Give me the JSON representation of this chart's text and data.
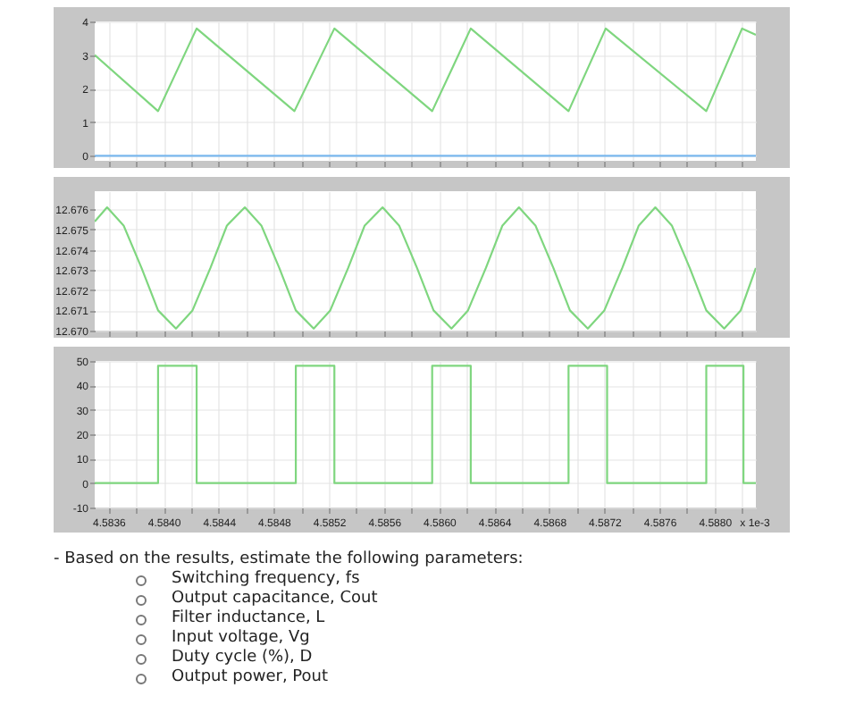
{
  "chart_data": [
    {
      "type": "line",
      "tick_labels": "y",
      "grid": true,
      "xlim": [
        4.5835,
        4.5883
      ],
      "xticks": [
        4.5836,
        4.5838,
        4.584,
        4.5842,
        4.5844,
        4.5846,
        4.5848,
        4.585,
        4.5852,
        4.5854,
        4.5856,
        4.5858,
        4.586,
        4.5862,
        4.5864,
        4.5866,
        4.5868,
        4.587,
        4.5872,
        4.5874,
        4.5876,
        4.5878,
        4.588,
        4.5882
      ],
      "ylim": [
        -0.15,
        4
      ],
      "yticks": [
        0,
        1,
        2,
        3,
        4
      ],
      "series": [
        {
          "color": "#7fd67f",
          "x": [
            4.5835,
            4.58396,
            4.58424,
            4.58495,
            4.58524,
            4.58595,
            4.58623,
            4.58694,
            4.58721,
            4.58794,
            4.5882,
            4.5883
          ],
          "values": [
            3.0,
            1.33,
            3.79,
            1.33,
            3.79,
            1.33,
            3.79,
            1.33,
            3.79,
            1.33,
            3.79,
            3.6
          ]
        },
        {
          "color": "#7ab8ee",
          "x": [
            4.5835,
            4.5883
          ],
          "values": [
            0,
            0
          ]
        }
      ]
    },
    {
      "type": "line",
      "tick_labels": "y",
      "grid": true,
      "xlim": [
        4.5835,
        4.5883
      ],
      "xticks": [
        4.5836,
        4.5838,
        4.584,
        4.5842,
        4.5844,
        4.5846,
        4.5848,
        4.585,
        4.5852,
        4.5854,
        4.5856,
        4.5858,
        4.586,
        4.5862,
        4.5864,
        4.5866,
        4.5868,
        4.587,
        4.5872,
        4.5874,
        4.5876,
        4.5878,
        4.588,
        4.5882
      ],
      "ylim": [
        12.67,
        12.6769
      ],
      "yticks": [
        {
          "value": 12.67,
          "label": "12.670"
        },
        {
          "value": 12.671,
          "label": "12.671"
        },
        {
          "value": 12.672,
          "label": "12.672"
        },
        {
          "value": 12.673,
          "label": "12.673"
        },
        {
          "value": 12.674,
          "label": "12.674"
        },
        {
          "value": 12.675,
          "label": "12.675"
        },
        {
          "value": 12.676,
          "label": "12.676"
        }
      ],
      "series": [
        {
          "color": "#7fd67f",
          "x": [
            4.5835,
            4.58359,
            4.58371,
            4.58384,
            4.58396,
            4.58409,
            4.58421,
            4.58434,
            4.58446,
            4.58459,
            4.58471,
            4.58484,
            4.58496,
            4.58509,
            4.58521,
            4.58534,
            4.58546,
            4.58559,
            4.58571,
            4.58584,
            4.58596,
            4.58609,
            4.58621,
            4.58634,
            4.58646,
            4.58658,
            4.5867,
            4.58683,
            4.58695,
            4.58708,
            4.5872,
            4.58733,
            4.58745,
            4.58757,
            4.58769,
            4.58782,
            4.58794,
            4.58807,
            4.58819,
            4.5883
          ],
          "values": [
            12.6754,
            12.6761,
            12.6752,
            12.6731,
            12.671,
            12.6701,
            12.671,
            12.6731,
            12.6752,
            12.6761,
            12.6752,
            12.6731,
            12.671,
            12.6701,
            12.671,
            12.6731,
            12.6752,
            12.6761,
            12.6752,
            12.6731,
            12.671,
            12.6701,
            12.671,
            12.6731,
            12.6752,
            12.6761,
            12.6752,
            12.6731,
            12.671,
            12.6701,
            12.671,
            12.6731,
            12.6752,
            12.6761,
            12.6752,
            12.6731,
            12.671,
            12.6701,
            12.671,
            12.6731
          ]
        }
      ]
    },
    {
      "type": "step",
      "grid": true,
      "xlabel": "x 1e-3",
      "xlim": [
        4.5835,
        4.5883
      ],
      "xticks": [
        {
          "value": 4.5836,
          "label": "4.5836"
        },
        {
          "value": 4.5838,
          "label": null
        },
        {
          "value": 4.584,
          "label": "4.5840"
        },
        {
          "value": 4.5842,
          "label": null
        },
        {
          "value": 4.5844,
          "label": "4.5844"
        },
        {
          "value": 4.5846,
          "label": null
        },
        {
          "value": 4.5848,
          "label": "4.5848"
        },
        {
          "value": 4.585,
          "label": null
        },
        {
          "value": 4.5852,
          "label": "4.5852"
        },
        {
          "value": 4.5854,
          "label": null
        },
        {
          "value": 4.5856,
          "label": "4.5856"
        },
        {
          "value": 4.5858,
          "label": null
        },
        {
          "value": 4.586,
          "label": "4.5860"
        },
        {
          "value": 4.5862,
          "label": null
        },
        {
          "value": 4.5864,
          "label": "4.5864"
        },
        {
          "value": 4.5866,
          "label": null
        },
        {
          "value": 4.5868,
          "label": "4.5868"
        },
        {
          "value": 4.587,
          "label": null
        },
        {
          "value": 4.5872,
          "label": "4.5872"
        },
        {
          "value": 4.5874,
          "label": null
        },
        {
          "value": 4.5876,
          "label": "4.5876"
        },
        {
          "value": 4.5878,
          "label": null
        },
        {
          "value": 4.588,
          "label": "4.5880"
        },
        {
          "value": 4.5882,
          "label": null
        }
      ],
      "ylim": [
        -10,
        50
      ],
      "yticks": [
        -10,
        0,
        10,
        20,
        30,
        40,
        50
      ],
      "series": [
        {
          "color": "#7fd67f",
          "x": [
            4.5835,
            4.58396,
            4.58424,
            4.58496,
            4.58524,
            4.58595,
            4.58623,
            4.58694,
            4.58722,
            4.58794,
            4.58821,
            4.5883
          ],
          "values": [
            0,
            48,
            0,
            48,
            0,
            48,
            0,
            48,
            0,
            48,
            0,
            0
          ]
        }
      ],
      "annotations": [
        "- Based on the results, estimate the following parameters:",
        "Switching frequency, fs",
        "Output capacitance, Cout",
        "Filter inductance, L",
        "Input voltage, Vg",
        "Duty cycle (%), D",
        "Output power, Pout"
      ]
    }
  ]
}
